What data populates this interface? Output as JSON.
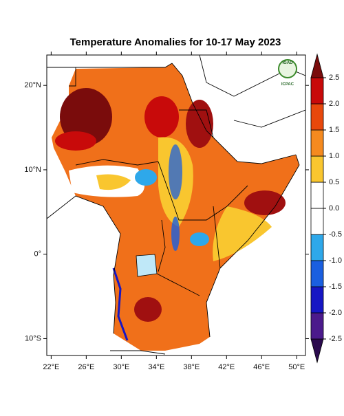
{
  "title": "Temperature Anomalies for 10-17 May 2023",
  "map": {
    "xlim": [
      21.5,
      51
    ],
    "ylim": [
      -12,
      23.6
    ],
    "xticks": [
      {
        "value": 22,
        "label": "22°E"
      },
      {
        "value": 26,
        "label": "26°E"
      },
      {
        "value": 30,
        "label": "30°E"
      },
      {
        "value": 34,
        "label": "34°E"
      },
      {
        "value": 38,
        "label": "38°E"
      },
      {
        "value": 42,
        "label": "42°E"
      },
      {
        "value": 46,
        "label": "46°E"
      },
      {
        "value": 50,
        "label": "50°E"
      }
    ],
    "yticks": [
      {
        "value": 20,
        "label": "20°N"
      },
      {
        "value": 10,
        "label": "10°N"
      },
      {
        "value": 0,
        "label": "0°"
      },
      {
        "value": -10,
        "label": "10°S"
      }
    ]
  },
  "colorbar": {
    "levels": [
      -2.5,
      {
        "value": -2,
        "label": "-2.0"
      },
      {
        "value": -1.5,
        "label": "-1.5"
      },
      {
        "value": -1,
        "label": "-1.0"
      },
      -0.5,
      {
        "value": 0,
        "label": "0.0"
      },
      0.5,
      {
        "value": 1,
        "label": "1.0"
      },
      1.5,
      {
        "value": 2,
        "label": "2.0"
      },
      2.5
    ],
    "colors": [
      "#2b0a4e",
      "#4b1a8c",
      "#1616c4",
      "#1a5fe0",
      "#2ea8ea",
      "#ffffff",
      "#ffffff",
      "#f9c62f",
      "#f58a1f",
      "#e8480c",
      "#c80a0a",
      "#7a0c0c"
    ]
  },
  "logo": {
    "name": "IGAD",
    "org": "ICPAC"
  }
}
